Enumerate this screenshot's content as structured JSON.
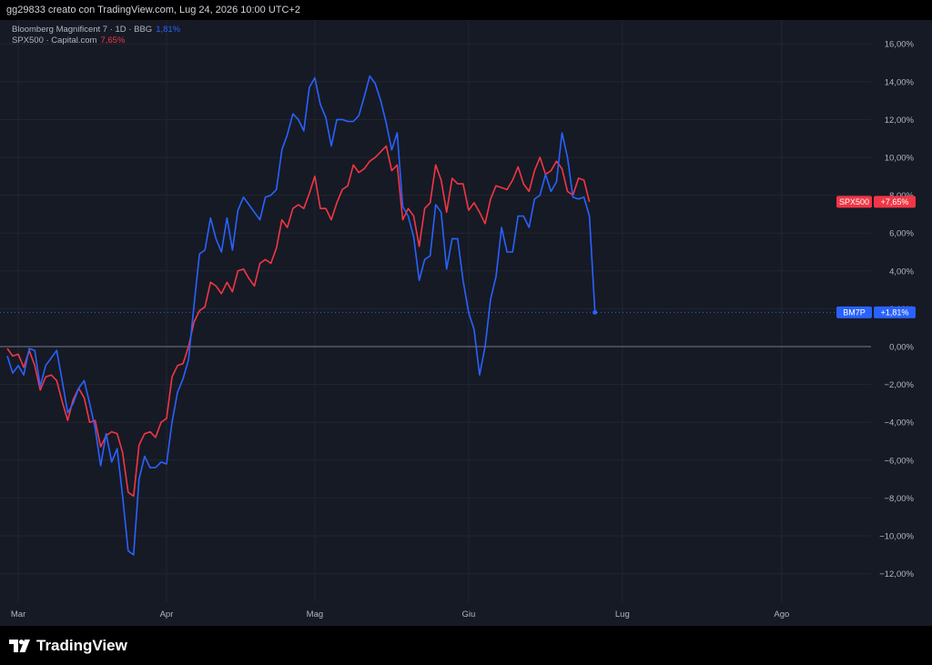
{
  "header": {
    "text": "gg29833 creato con TradingView.com, Lug 24, 2026 10:00 UTC+2"
  },
  "legend": [
    {
      "label": "Bloomberg Magnificent 7 · 1D · BBG",
      "value": "1,81%",
      "color": "#2962ff"
    },
    {
      "label": "SPX500 · Capital.com",
      "value": "7,65%",
      "color": "#f23645"
    }
  ],
  "footer": {
    "brand": "TradingView"
  },
  "colors": {
    "background": "#161a25",
    "blue": "#2962ff",
    "red": "#f23645",
    "zero_line": "#787b86"
  },
  "chart_data": {
    "type": "line",
    "ylim": [
      -13,
      16.5
    ],
    "y_ticks": [
      16,
      14,
      12,
      10,
      8,
      6,
      4,
      2,
      0,
      -2,
      -4,
      -6,
      -8,
      -10,
      -12
    ],
    "y_tick_labels": [
      "16,00%",
      "14,00%",
      "12,00%",
      "10,00%",
      "8,00%",
      "6,00%",
      "4,00%",
      "2,00%",
      "0,00%",
      "−2,00%",
      "−4,00%",
      "−6,00%",
      "−8,00%",
      "−10,00%",
      "−12,00%"
    ],
    "x_ticks": [
      {
        "label": "Mar",
        "index": 2
      },
      {
        "label": "Apr",
        "index": 29
      },
      {
        "label": "Mag",
        "index": 56
      },
      {
        "label": "Giu",
        "index": 84
      },
      {
        "label": "Lug",
        "index": 112
      },
      {
        "label": "Ago",
        "index": 141
      }
    ],
    "x_range": [
      0,
      146
    ],
    "series": [
      {
        "name": "BM7P",
        "badge": "BM7P",
        "badge_value": "+1,81%",
        "color": "#2962ff",
        "values": [
          -0.5,
          -1.4,
          -1.0,
          -1.5,
          -0.1,
          -0.2,
          -2.1,
          -1.0,
          -0.6,
          -0.2,
          -1.8,
          -3.5,
          -3.0,
          -2.2,
          -1.8,
          -3.0,
          -4.3,
          -6.3,
          -4.6,
          -6.1,
          -5.4,
          -7.9,
          -10.8,
          -11.0,
          -7.0,
          -5.8,
          -6.4,
          -6.4,
          -6.1,
          -6.2,
          -4.0,
          -2.4,
          -1.7,
          -0.7,
          2.2,
          4.9,
          5.1,
          6.8,
          5.7,
          5.0,
          6.8,
          5.1,
          7.2,
          7.9,
          7.5,
          7.1,
          6.7,
          7.9,
          8.0,
          8.3,
          10.4,
          11.2,
          12.3,
          12.0,
          11.4,
          13.7,
          14.2,
          12.8,
          12.1,
          10.6,
          12.0,
          12.0,
          11.9,
          11.9,
          12.2,
          13.2,
          14.3,
          13.9,
          13.0,
          11.8,
          10.4,
          11.3,
          7.4,
          6.9,
          5.8,
          3.5,
          4.6,
          4.8,
          7.5,
          7.1,
          4.1,
          5.7,
          5.7,
          3.5,
          1.8,
          0.9,
          -1.5,
          0.0,
          2.5,
          3.7,
          6.3,
          5.0,
          5.0,
          6.9,
          6.9,
          6.3,
          7.8,
          8.0,
          9.1,
          8.2,
          8.7,
          11.3,
          10.0,
          7.9,
          7.8,
          7.9,
          6.9,
          1.81
        ]
      },
      {
        "name": "SPX500",
        "badge": "SPX500",
        "badge_value": "+7,65%",
        "color": "#f23645",
        "values": [
          -0.1,
          -0.5,
          -0.4,
          -1.1,
          -0.2,
          -1.0,
          -2.3,
          -1.6,
          -1.5,
          -1.8,
          -2.9,
          -3.9,
          -2.8,
          -2.2,
          -2.7,
          -4.0,
          -3.9,
          -5.3,
          -4.7,
          -4.5,
          -4.6,
          -5.6,
          -7.7,
          -7.9,
          -5.2,
          -4.6,
          -4.5,
          -4.8,
          -4.0,
          -3.8,
          -1.6,
          -1.0,
          -0.9,
          0.0,
          1.3,
          1.9,
          2.1,
          3.4,
          3.2,
          2.8,
          3.4,
          2.9,
          4.0,
          4.1,
          3.6,
          3.2,
          4.4,
          4.6,
          4.4,
          5.2,
          6.7,
          6.3,
          7.3,
          7.5,
          7.3,
          8.1,
          9.0,
          7.3,
          7.3,
          6.7,
          7.6,
          8.3,
          8.5,
          9.6,
          9.2,
          9.4,
          9.8,
          10.0,
          10.3,
          10.6,
          9.3,
          9.6,
          6.7,
          7.3,
          6.9,
          5.3,
          7.3,
          7.6,
          9.6,
          8.8,
          7.1,
          8.9,
          8.6,
          8.6,
          7.2,
          7.6,
          7.1,
          6.5,
          7.8,
          8.5,
          8.4,
          8.3,
          8.8,
          9.5,
          8.6,
          8.2,
          9.3,
          10.0,
          9.1,
          9.3,
          9.8,
          9.4,
          8.2,
          8.0,
          8.9,
          8.8,
          7.65
        ]
      }
    ]
  }
}
